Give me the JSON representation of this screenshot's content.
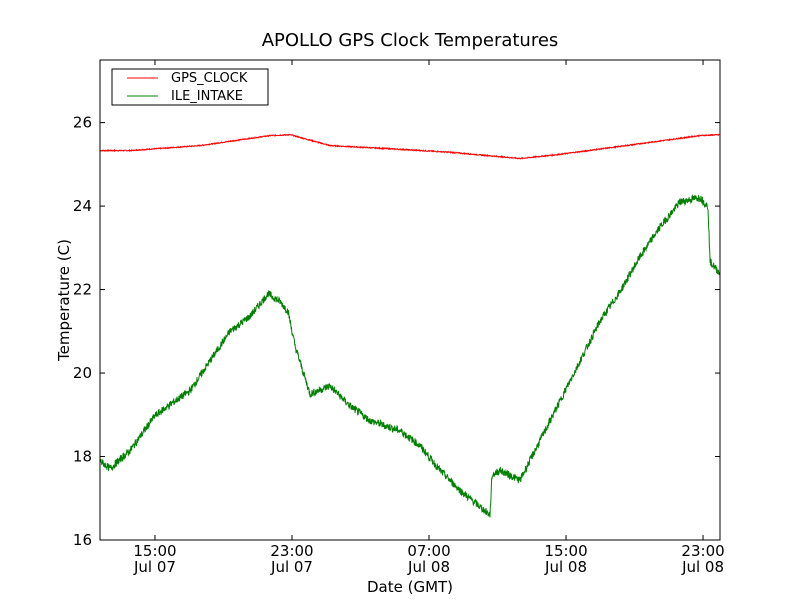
{
  "chart_data": {
    "type": "line",
    "title": "APOLLO GPS Clock Temperatures",
    "xlabel": "Date (GMT)",
    "ylabel": "Temperature (C)",
    "x_units": "hours since Jul 07 00:00 GMT",
    "xlim": [
      11.79,
      47.99
    ],
    "ylim": [
      16,
      27.5
    ],
    "yticks": [
      16,
      18,
      20,
      22,
      24,
      26
    ],
    "xticks": [
      {
        "x": 15,
        "time": "15:00",
        "date": "Jul 07"
      },
      {
        "x": 23,
        "time": "23:00",
        "date": "Jul 07"
      },
      {
        "x": 31,
        "time": "07:00",
        "date": "Jul 08"
      },
      {
        "x": 39,
        "time": "15:00",
        "date": "Jul 08"
      },
      {
        "x": 47,
        "time": "23:00",
        "date": "Jul 08"
      }
    ],
    "grid": false,
    "legend_position": "top-left",
    "series": [
      {
        "name": "GPS_CLOCK",
        "color": "#ff0000",
        "x": [
          11.79,
          13.54,
          17.63,
          21.72,
          22.88,
          25.22,
          29.31,
          32.23,
          36.31,
          38.65,
          42.15,
          46.82,
          47.99
        ],
        "y": [
          25.33,
          25.33,
          25.45,
          25.69,
          25.71,
          25.45,
          25.36,
          25.29,
          25.14,
          25.24,
          25.43,
          25.69,
          25.71
        ]
      },
      {
        "name": "ILE_INTAKE",
        "color": "#008000",
        "x": [
          11.79,
          12.37,
          13.54,
          15.0,
          16.17,
          17.04,
          18.21,
          19.38,
          20.55,
          21.6,
          22.3,
          22.77,
          23.18,
          24.05,
          25.22,
          26.39,
          27.55,
          29.31,
          30.47,
          31.64,
          32.81,
          34.56,
          34.68,
          35.14,
          36.31,
          37.48,
          38.65,
          39.82,
          40.98,
          42.15,
          43.32,
          44.49,
          45.66,
          46.82,
          47.29,
          47.41,
          47.99
        ],
        "y": [
          17.9,
          17.71,
          18.14,
          18.98,
          19.33,
          19.57,
          20.29,
          21.0,
          21.36,
          21.9,
          21.71,
          21.48,
          20.64,
          19.5,
          19.69,
          19.21,
          18.86,
          18.62,
          18.26,
          17.67,
          17.19,
          16.6,
          17.55,
          17.67,
          17.43,
          18.38,
          19.33,
          20.29,
          21.24,
          21.95,
          22.79,
          23.5,
          24.1,
          24.21,
          23.98,
          22.67,
          22.38
        ]
      }
    ]
  }
}
